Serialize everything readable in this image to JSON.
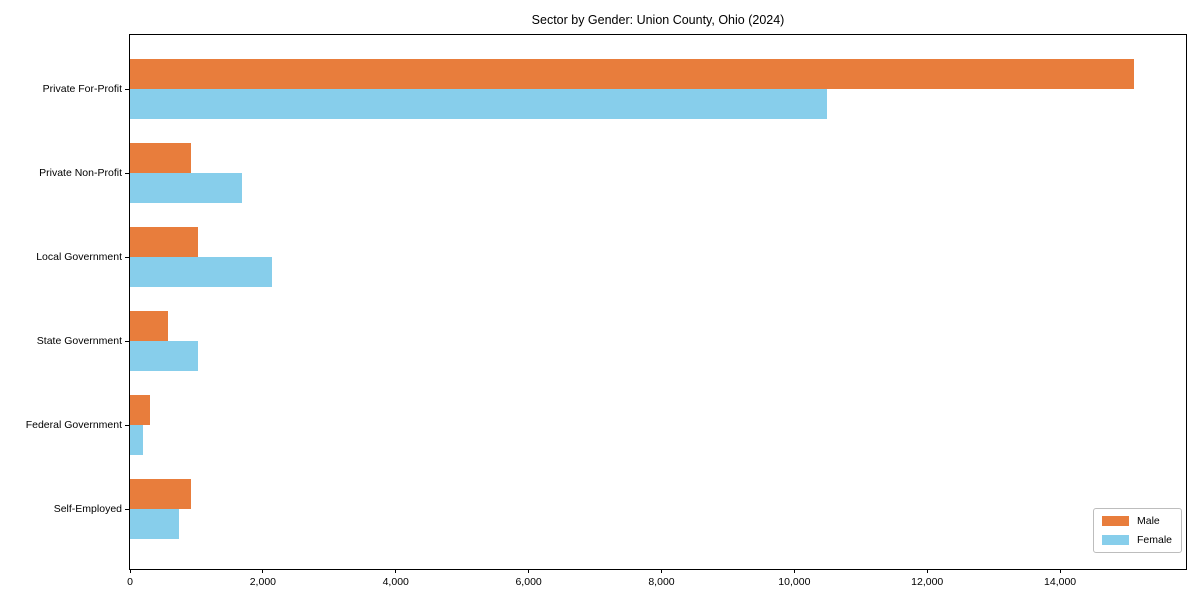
{
  "chart_data": {
    "type": "bar",
    "orientation": "horizontal",
    "title": "Sector by Gender: Union County, Ohio (2024)",
    "xlabel": "",
    "ylabel": "",
    "grid": false,
    "categories": [
      "Private For-Profit",
      "Private Non-Profit",
      "Local Government",
      "State Government",
      "Federal Government",
      "Self-Employed"
    ],
    "series": [
      {
        "name": "Male",
        "color": "#e87d3c",
        "values": [
          15110,
          920,
          1030,
          575,
          300,
          920
        ]
      },
      {
        "name": "Female",
        "color": "#87ceeb",
        "values": [
          10490,
          1680,
          2130,
          1030,
          190,
          740
        ]
      }
    ],
    "xlim": [
      0,
      15895
    ],
    "xticks": [
      0,
      2000,
      4000,
      6000,
      8000,
      10000,
      12000,
      14000
    ],
    "xtick_labels": [
      "0",
      "2,000",
      "4,000",
      "6,000",
      "8,000",
      "10,000",
      "12,000",
      "14,000"
    ],
    "legend": {
      "position": "lower right",
      "entries": [
        "Male",
        "Female"
      ]
    }
  }
}
